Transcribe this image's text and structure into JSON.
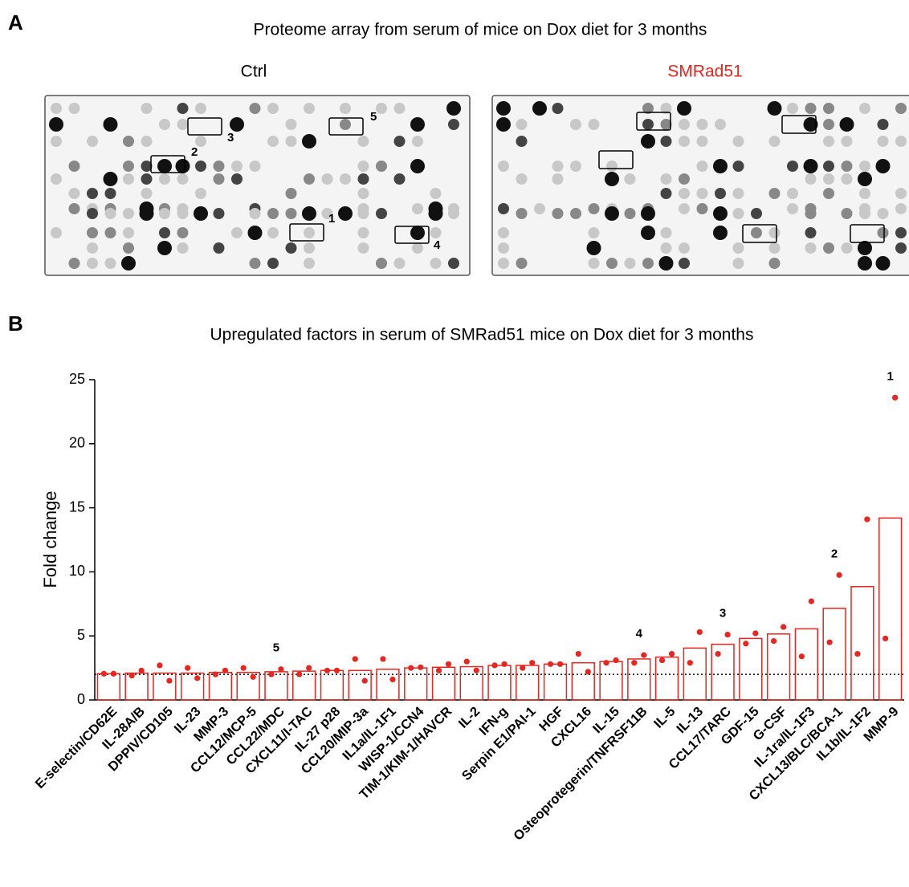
{
  "panel_a": {
    "label": "A",
    "title": "Proteome array from serum of mice on Dox diet for 3 months",
    "blots": [
      {
        "title": "Ctrl",
        "title_color": "#000000",
        "box_labels": [
          "1",
          "2",
          "3",
          "4",
          "5"
        ]
      },
      {
        "title": "SMRad51",
        "title_color": "#e8251f"
      }
    ]
  },
  "panel_b_label": "B",
  "chart_data": {
    "type": "bar",
    "title": "Upregulated factors in serum of SMRad51 mice on Dox diet for 3 months",
    "y_label": "Fold change",
    "color": "#e8251f",
    "categories": [
      "E-selectin/CD62E",
      "IL-28A/B",
      "DPPIV/CD105",
      "IL-23",
      "MMP-3",
      "CCL12/MCP-5",
      "CCL22/MDC",
      "CXCL11/I-TAC",
      "IL-27 p28",
      "CCL20/MIP-3a",
      "IL1a/IL-1F1",
      "WISP-1/CCN4",
      "TIM-1/KIM-1/HAVCR",
      "IL-2",
      "IFN-g",
      "Serpin E1/PAI-1",
      "HGF",
      "CXCL16",
      "IL-15",
      "Osteoprotegerin/TNFRSF11B",
      "IL-5",
      "IL-13",
      "CCL17/TARC",
      "GDF-15",
      "G-CSF",
      "IL-1ra/IL-1F3",
      "CXCL13/BLC/BCA-1",
      "IL1b/IL-1F2",
      "MMP-9"
    ],
    "values": [
      2.05,
      2.1,
      2.1,
      2.1,
      2.15,
      2.15,
      2.2,
      2.25,
      2.3,
      2.3,
      2.4,
      2.5,
      2.55,
      2.6,
      2.7,
      2.7,
      2.8,
      2.9,
      3.0,
      3.2,
      3.35,
      4.05,
      4.35,
      4.8,
      5.15,
      5.55,
      7.15,
      8.85,
      14.2
    ],
    "dots": [
      [
        2.05,
        1.9,
        2.7,
        2.5,
        2.0,
        2.5,
        2.0,
        2.0,
        2.3,
        3.2,
        3.2,
        2.5,
        2.3,
        3.0,
        2.7,
        2.5,
        2.8,
        3.6,
        2.9,
        2.9,
        3.1,
        2.9,
        3.6,
        4.4,
        4.6,
        3.4,
        4.5,
        3.6,
        4.8
      ],
      [
        2.05,
        2.3,
        1.5,
        1.7,
        2.3,
        1.8,
        2.4,
        2.5,
        2.3,
        1.5,
        1.6,
        2.55,
        2.8,
        2.3,
        2.8,
        2.9,
        2.8,
        2.2,
        3.1,
        3.5,
        3.6,
        5.3,
        5.1,
        5.2,
        5.7,
        7.7,
        9.75,
        14.1,
        23.6
      ]
    ],
    "reference_line": 2,
    "annotations": [
      {
        "text": "1",
        "category": "MMP-9"
      },
      {
        "text": "2",
        "category": "CXCL13/BLC/BCA-1"
      },
      {
        "text": "3",
        "category": "CCL17/TARC"
      },
      {
        "text": "4",
        "category": "Osteoprotegerin/TNFRSF11B"
      },
      {
        "text": "5",
        "category": "CCL22/MDC"
      }
    ],
    "ylim": [
      0,
      25
    ],
    "yticks": [
      0,
      5,
      10,
      15,
      20,
      25
    ]
  }
}
